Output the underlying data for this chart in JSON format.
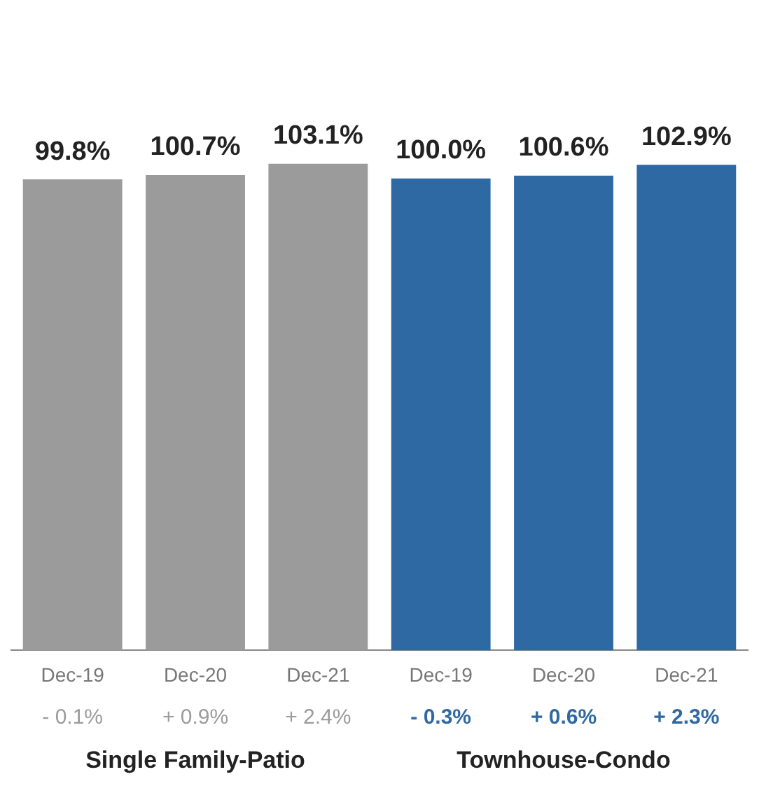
{
  "chart_data": {
    "type": "bar",
    "categories": [
      "Dec-19",
      "Dec-20",
      "Dec-21",
      "Dec-19",
      "Dec-20",
      "Dec-21"
    ],
    "values": [
      99.8,
      100.7,
      103.1,
      100.0,
      100.6,
      102.9
    ],
    "colors": [
      "#9b9b9b",
      "#9b9b9b",
      "#9b9b9b",
      "#2f69a3",
      "#2f69a3",
      "#2f69a3"
    ],
    "value_labels": [
      "99.8%",
      "100.7%",
      "103.1%",
      "100.0%",
      "100.6%",
      "102.9%"
    ],
    "tick_labels": "x",
    "grid": false,
    "legend": false,
    "annotations": [
      "- 0.1%",
      "+ 0.9%",
      "+ 2.4%",
      "- 0.3%",
      "+ 0.6%",
      "+ 2.3%",
      "Single Family-Patio",
      "Townhouse-Condo"
    ]
  }
}
